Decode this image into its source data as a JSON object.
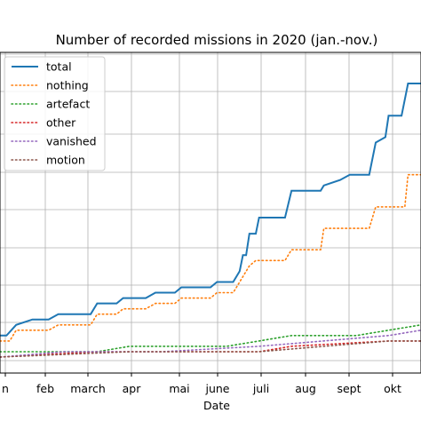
{
  "chart_data": {
    "type": "line",
    "title": "Number of recorded missions in 2020 (jan.-nov.)",
    "xlabel": "Date",
    "ylabel": "",
    "x_tick_labels": [
      "n",
      "feb",
      "march",
      "apr",
      "mai",
      "june",
      "juli",
      "aug",
      "sept",
      "okt"
    ],
    "grid": true,
    "legend_position": "top-left",
    "series": [
      {
        "name": "total",
        "color": "#1f77b4",
        "style": "solid",
        "points": [
          [
            0,
            4
          ],
          [
            0.2,
            4
          ],
          [
            0.5,
            6
          ],
          [
            1,
            7
          ],
          [
            1.5,
            7
          ],
          [
            1.8,
            8
          ],
          [
            2.8,
            8
          ],
          [
            3,
            10
          ],
          [
            3.6,
            10
          ],
          [
            3.8,
            11
          ],
          [
            4.5,
            11
          ],
          [
            4.8,
            12
          ],
          [
            5.4,
            12
          ],
          [
            5.6,
            13
          ],
          [
            6.5,
            13
          ],
          [
            6.7,
            14
          ],
          [
            7.2,
            14
          ],
          [
            7.4,
            16
          ],
          [
            7.5,
            19
          ],
          [
            7.6,
            19
          ],
          [
            7.7,
            23
          ],
          [
            7.9,
            23
          ],
          [
            8,
            26
          ],
          [
            8.8,
            26
          ],
          [
            9,
            31
          ],
          [
            9.9,
            31
          ],
          [
            10,
            32
          ],
          [
            10.5,
            33
          ],
          [
            10.8,
            34
          ],
          [
            11.4,
            34
          ],
          [
            11.6,
            40
          ],
          [
            11.9,
            41
          ],
          [
            12,
            45
          ],
          [
            12.4,
            45
          ],
          [
            12.6,
            51
          ],
          [
            13,
            51
          ]
        ]
      },
      {
        "name": "nothing",
        "color": "#ff7f0e",
        "style": "dotted",
        "points": [
          [
            0,
            3
          ],
          [
            0.3,
            3
          ],
          [
            0.5,
            5
          ],
          [
            1,
            5
          ],
          [
            1.5,
            5
          ],
          [
            1.8,
            6
          ],
          [
            2.8,
            6
          ],
          [
            3,
            8
          ],
          [
            3.6,
            8
          ],
          [
            3.8,
            9
          ],
          [
            4.5,
            9
          ],
          [
            4.8,
            10
          ],
          [
            5.4,
            10
          ],
          [
            5.6,
            11
          ],
          [
            6.5,
            11
          ],
          [
            6.7,
            12
          ],
          [
            7.2,
            12
          ],
          [
            7.3,
            13
          ],
          [
            7.5,
            15
          ],
          [
            7.7,
            17
          ],
          [
            7.9,
            18
          ],
          [
            8.8,
            18
          ],
          [
            9,
            20
          ],
          [
            9.9,
            20
          ],
          [
            10,
            24
          ],
          [
            11.4,
            24
          ],
          [
            11.6,
            28
          ],
          [
            12.5,
            28
          ],
          [
            12.6,
            34
          ],
          [
            13,
            34
          ]
        ]
      },
      {
        "name": "artefact",
        "color": "#2ca02c",
        "style": "dotted",
        "points": [
          [
            0,
            1
          ],
          [
            3,
            1
          ],
          [
            4,
            2
          ],
          [
            7,
            2
          ],
          [
            8,
            3
          ],
          [
            9,
            4
          ],
          [
            11,
            4
          ],
          [
            12,
            5
          ],
          [
            13,
            6
          ]
        ]
      },
      {
        "name": "other",
        "color": "#d62728",
        "style": "dotted",
        "points": [
          [
            0,
            0
          ],
          [
            3,
            1
          ],
          [
            6,
            1
          ],
          [
            8,
            1
          ],
          [
            9,
            2
          ],
          [
            12,
            3
          ],
          [
            13,
            3
          ]
        ]
      },
      {
        "name": "vanished",
        "color": "#9467bd",
        "style": "dotted",
        "points": [
          [
            0,
            0
          ],
          [
            2,
            1
          ],
          [
            5,
            1
          ],
          [
            8,
            2
          ],
          [
            12,
            4
          ],
          [
            13,
            5
          ]
        ]
      },
      {
        "name": "motion",
        "color": "#8c564b",
        "style": "dotted",
        "points": [
          [
            0,
            0
          ],
          [
            4,
            1
          ],
          [
            8,
            1
          ],
          [
            12,
            3
          ],
          [
            13,
            3
          ]
        ]
      }
    ]
  }
}
